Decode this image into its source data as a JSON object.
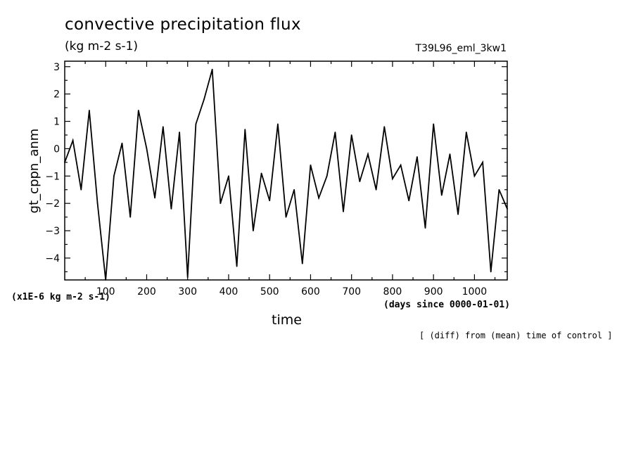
{
  "chart_data": {
    "type": "line",
    "title": "convective precipitation flux",
    "units": "(kg m-2 s-1)",
    "run_label": "T39L96_eml_3kw1",
    "ylabel": "gt_cppn_anm",
    "xlabel": "time",
    "x_units": "(days since 0000-01-01)",
    "y_scale_note": "(x1E-6 kg m-2 s-1)",
    "note": "[ (diff) from (mean) time of control ]",
    "xlim": [
      0,
      1080
    ],
    "ylim": [
      -4.8,
      3.2
    ],
    "x_ticks": [
      100,
      200,
      300,
      400,
      500,
      600,
      700,
      800,
      900,
      1000
    ],
    "y_ticks": [
      -4,
      -3,
      -2,
      -1,
      0,
      1,
      2,
      3
    ],
    "series": [
      {
        "name": "gt_cppn_anm",
        "x": [
          0,
          20,
          40,
          60,
          80,
          100,
          120,
          140,
          160,
          180,
          200,
          220,
          240,
          260,
          280,
          300,
          320,
          340,
          360,
          380,
          400,
          420,
          440,
          460,
          480,
          500,
          520,
          540,
          560,
          580,
          600,
          620,
          640,
          660,
          680,
          700,
          720,
          740,
          760,
          780,
          800,
          820,
          840,
          860,
          880,
          900,
          920,
          940,
          960,
          980,
          1000,
          1020,
          1040,
          1060,
          1080
        ],
        "values": [
          -0.5,
          0.3,
          -1.5,
          1.4,
          -2.0,
          -4.8,
          -1.0,
          0.2,
          -2.5,
          1.4,
          0.0,
          -1.8,
          0.8,
          -2.2,
          0.6,
          -4.7,
          0.9,
          1.8,
          2.9,
          -2.0,
          -1.0,
          -4.3,
          0.7,
          -3.0,
          -0.9,
          -1.9,
          0.9,
          -2.5,
          -1.5,
          -4.2,
          -0.6,
          -1.8,
          -1.0,
          0.6,
          -2.3,
          0.5,
          -1.2,
          -0.2,
          -1.5,
          0.8,
          -1.1,
          -0.6,
          -1.9,
          -0.3,
          -2.9,
          0.9,
          -1.7,
          -0.2,
          -2.4,
          0.6,
          -1.0,
          -0.5,
          -4.5,
          -1.5,
          -2.2
        ]
      }
    ]
  }
}
